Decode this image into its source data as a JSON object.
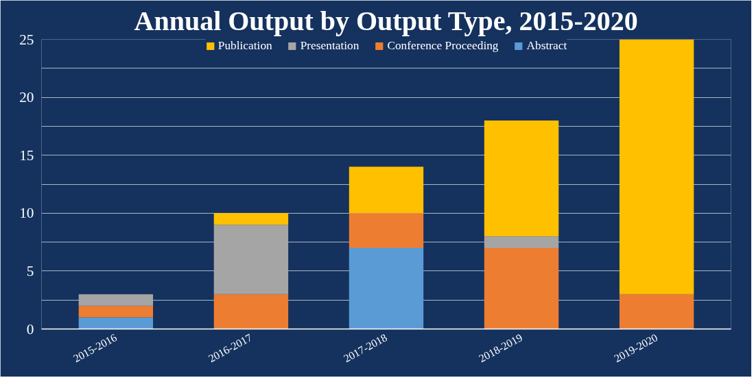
{
  "chart_data": {
    "type": "bar",
    "stacked": true,
    "title": "Annual Output by Output Type, 2015-2020",
    "categories": [
      "2015-2016",
      "2016-2017",
      "2017-2018",
      "2018-2019",
      "2019-2020"
    ],
    "series": [
      {
        "name": "Abstract",
        "color": "#5b9bd5",
        "values": [
          1,
          0,
          7,
          0,
          0
        ]
      },
      {
        "name": "Conference Proceeding",
        "color": "#ed7d31",
        "values": [
          1,
          3,
          3,
          7,
          3
        ]
      },
      {
        "name": "Presentation",
        "color": "#a5a5a5",
        "values": [
          1,
          6,
          0,
          1,
          0
        ]
      },
      {
        "name": "Publication",
        "color": "#ffc000",
        "values": [
          0,
          1,
          4,
          10,
          22
        ]
      }
    ],
    "ylim": [
      0,
      25
    ],
    "yticks": [
      0,
      {
        "value": 2.5,
        "label": null
      },
      5,
      {
        "value": 7.5,
        "label": null
      },
      10,
      {
        "value": 12.5,
        "label": null
      },
      15,
      {
        "value": 17.5,
        "label": null
      },
      20,
      {
        "value": 22.5,
        "label": null
      },
      25
    ],
    "grid": "y",
    "legend": "top"
  }
}
